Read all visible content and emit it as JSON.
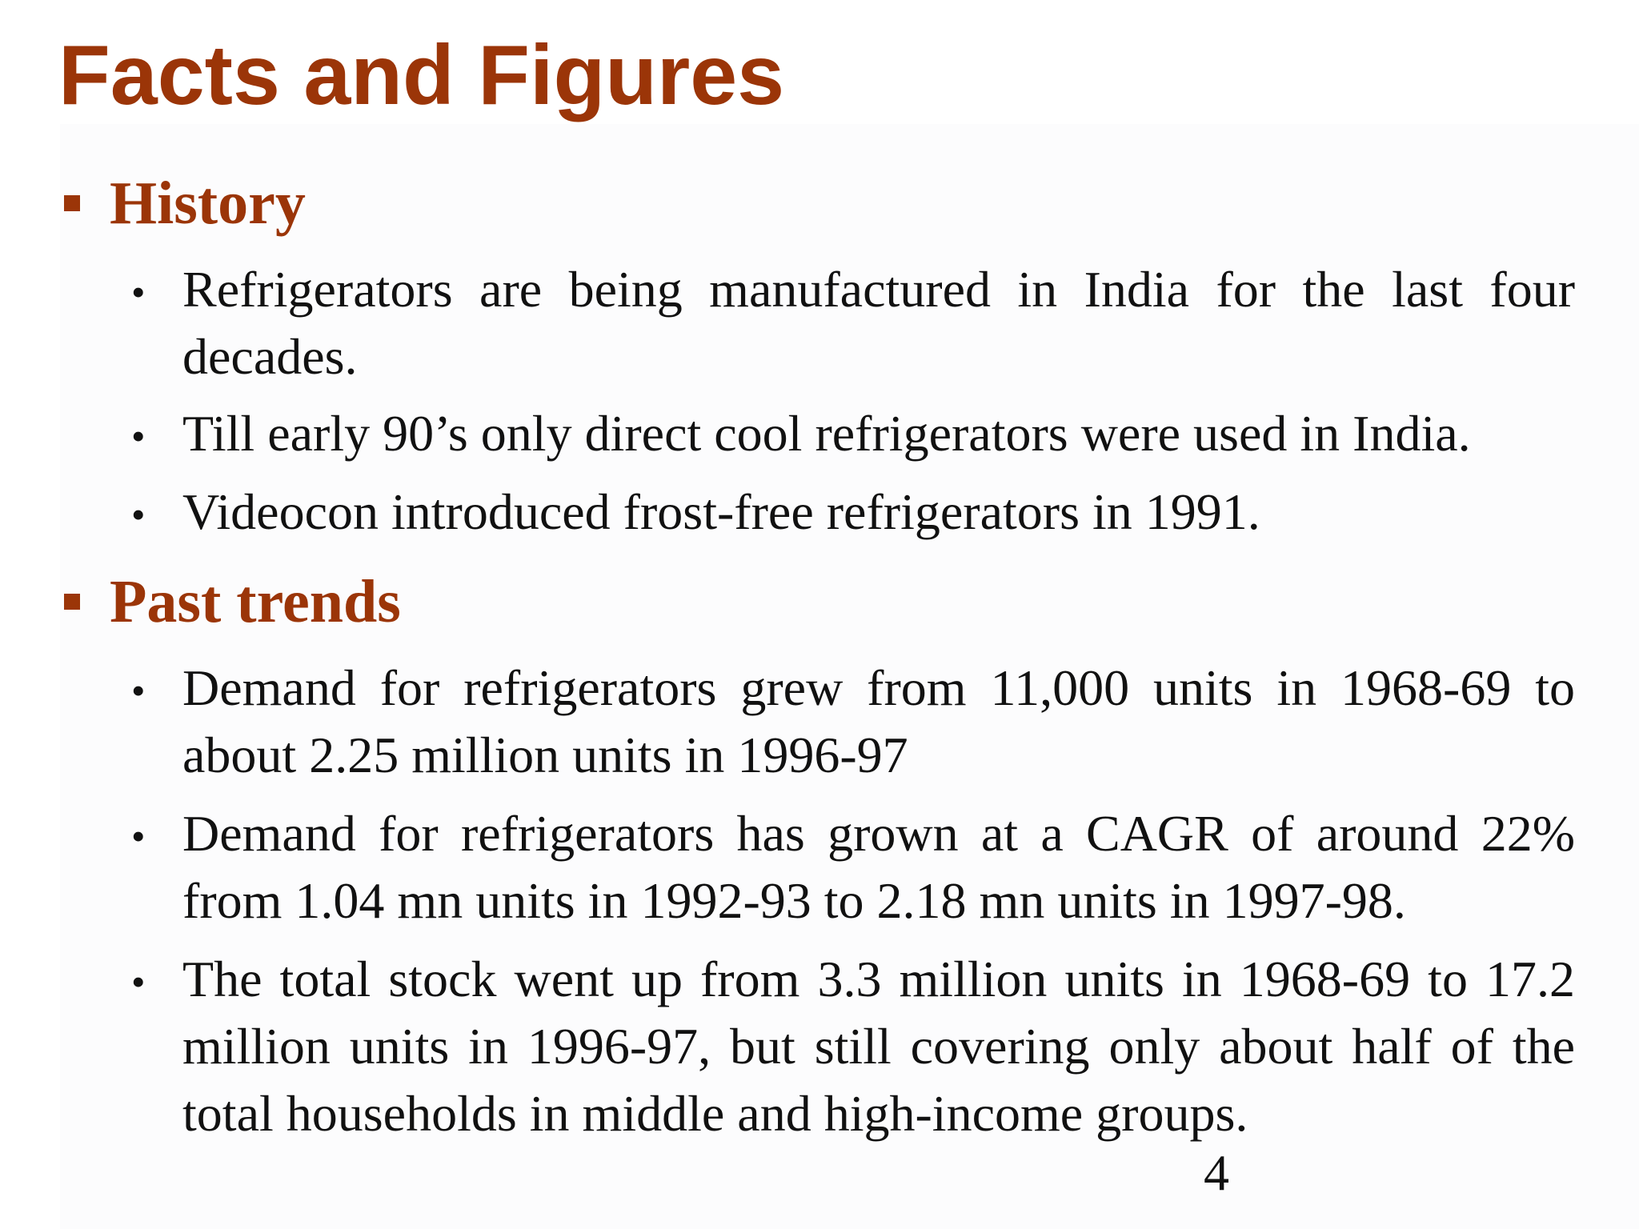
{
  "slide": {
    "title": "Facts and Figures",
    "page_number": "4",
    "colors": {
      "accent": "#9b3508",
      "text": "#111111",
      "background": "#ffffff"
    },
    "sections": [
      {
        "heading": "History",
        "bullets": [
          "Refrigerators are being manufactured in India for the last four decades.",
          "Till early 90’s only direct cool refrigerators were used in India.",
          "Videocon introduced frost-free refrigerators in 1991."
        ]
      },
      {
        "heading": "Past trends",
        "bullets": [
          "Demand for refrigerators grew from 11,000 units in 1968-69 to about 2.25 million units in 1996-97",
          "Demand for refrigerators has grown at a CAGR of around 22% from 1.04 mn units in 1992-93 to 2.18 mn units in 1997-98.",
          "The total stock went up from 3.3 million units in 1968-69 to 17.2 million units in 1996-97, but still covering only about half of the total households in middle and high-income groups."
        ]
      }
    ]
  }
}
